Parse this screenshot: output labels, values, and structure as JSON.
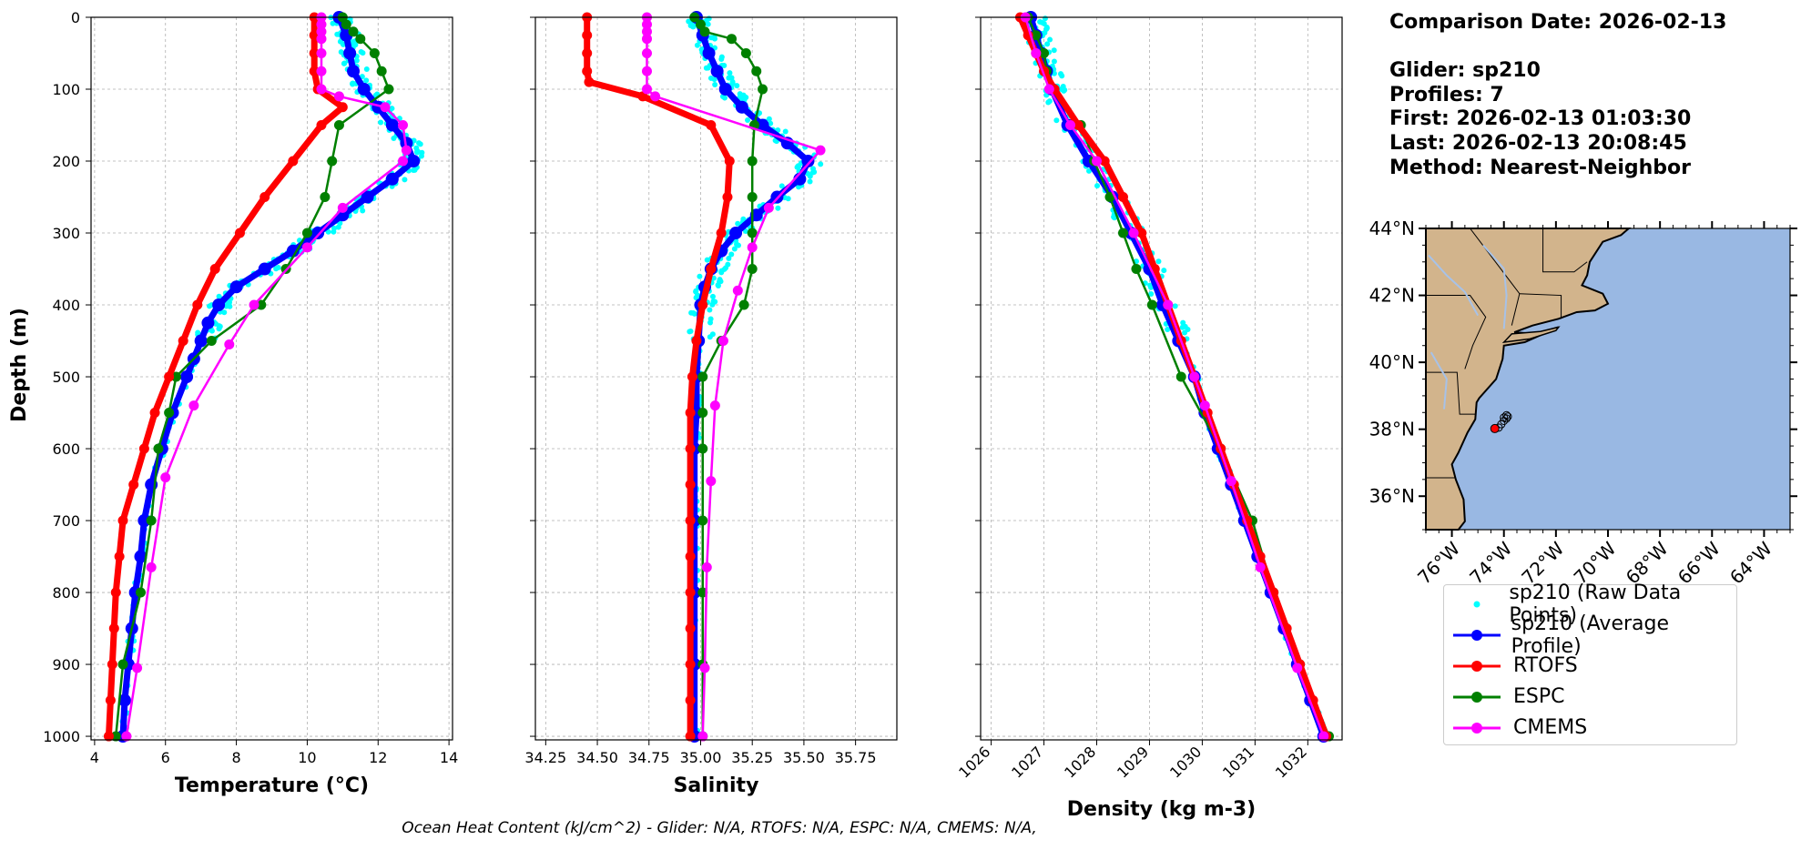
{
  "info": {
    "comparison_date": "Comparison Date: 2026-02-13",
    "glider": "Glider: sp210",
    "profiles": "Profiles: 7",
    "first": "First: 2026-02-13 01:03:30",
    "last": "Last: 2026-02-13 20:08:45",
    "method": "Method: Nearest-Neighbor"
  },
  "footer": "Ocean Heat Content (kJ/cm^2) - Glider: N/A,  RTOFS: N/A,  ESPC: N/A,  CMEMS: N/A,",
  "legend": [
    {
      "label": "sp210 (Raw Data Points)",
      "color": "#00ffff",
      "style": "dot"
    },
    {
      "label": "sp210 (Average Profile)",
      "color": "#0000ff",
      "style": "line"
    },
    {
      "label": "RTOFS",
      "color": "#ff0000",
      "style": "line"
    },
    {
      "label": "ESPC",
      "color": "#008000",
      "style": "line"
    },
    {
      "label": "CMEMS",
      "color": "#ff00ff",
      "style": "line"
    }
  ],
  "colors": {
    "raw": "#00ffff",
    "glider": "#0000ff",
    "rtofs": "#ff0000",
    "espc": "#008000",
    "cmems": "#ff00ff",
    "land": "#d2b48c",
    "ocean": "#99b8e3"
  },
  "chart_data": [
    {
      "type": "line",
      "xlabel": "Temperature (°C)",
      "ylabel": "Depth (m)",
      "xlim": [
        3.9,
        14.1
      ],
      "ylim": [
        1005,
        0
      ],
      "xticks": [
        4,
        6,
        8,
        10,
        12,
        14
      ],
      "yticks": [
        0,
        100,
        200,
        300,
        400,
        500,
        600,
        700,
        800,
        900,
        1000
      ],
      "series": [
        {
          "name": "sp210 (Average Profile)",
          "key": "glider",
          "depth": [
            0,
            25,
            50,
            75,
            100,
            125,
            150,
            175,
            200,
            225,
            250,
            275,
            300,
            325,
            350,
            375,
            400,
            425,
            450,
            475,
            500,
            550,
            600,
            650,
            700,
            750,
            800,
            850,
            900,
            950,
            1000
          ],
          "values": [
            10.9,
            11.1,
            11.2,
            11.3,
            11.6,
            12.0,
            12.4,
            12.8,
            13.0,
            12.4,
            11.7,
            11.0,
            10.3,
            9.6,
            8.8,
            8.0,
            7.5,
            7.2,
            7.0,
            6.8,
            6.6,
            6.2,
            5.9,
            5.6,
            5.4,
            5.3,
            5.15,
            5.05,
            4.95,
            4.85,
            4.8
          ]
        },
        {
          "name": "RTOFS",
          "key": "rtofs",
          "depth": [
            0,
            25,
            50,
            75,
            100,
            125,
            150,
            200,
            250,
            300,
            350,
            400,
            450,
            500,
            550,
            600,
            650,
            700,
            750,
            800,
            850,
            900,
            950,
            1000
          ],
          "values": [
            10.2,
            10.2,
            10.2,
            10.2,
            10.3,
            11.0,
            10.4,
            9.6,
            8.8,
            8.1,
            7.4,
            6.9,
            6.5,
            6.1,
            5.7,
            5.4,
            5.1,
            4.8,
            4.7,
            4.6,
            4.55,
            4.5,
            4.45,
            4.4
          ]
        },
        {
          "name": "ESPC",
          "key": "espc",
          "depth": [
            0,
            10,
            20,
            30,
            50,
            75,
            100,
            150,
            200,
            250,
            300,
            350,
            400,
            450,
            500,
            550,
            600,
            700,
            800,
            900,
            1000
          ],
          "values": [
            11.0,
            11.1,
            11.3,
            11.5,
            11.9,
            12.1,
            12.3,
            10.9,
            10.7,
            10.5,
            10.0,
            9.4,
            8.7,
            7.3,
            6.3,
            6.1,
            5.8,
            5.6,
            5.3,
            4.8,
            4.6
          ]
        },
        {
          "name": "CMEMS",
          "key": "cmems",
          "depth": [
            0,
            10,
            20,
            30,
            50,
            75,
            100,
            110,
            125,
            150,
            185,
            200,
            265,
            320,
            400,
            455,
            540,
            640,
            765,
            905,
            1000
          ],
          "values": [
            10.4,
            10.4,
            10.4,
            10.4,
            10.4,
            10.4,
            10.4,
            10.9,
            12.2,
            12.7,
            12.8,
            12.7,
            11.0,
            10.0,
            8.5,
            7.8,
            6.8,
            6.0,
            5.6,
            5.2,
            4.9
          ]
        }
      ]
    },
    {
      "type": "line",
      "xlabel": "Salinity",
      "ylabel": "",
      "xlim": [
        34.2,
        35.95
      ],
      "ylim": [
        1005,
        0
      ],
      "xticks": [
        34.25,
        34.5,
        34.75,
        35.0,
        35.25,
        35.5,
        35.75
      ],
      "yticks": [
        0,
        100,
        200,
        300,
        400,
        500,
        600,
        700,
        800,
        900,
        1000
      ],
      "series": [
        {
          "name": "sp210 (Average Profile)",
          "key": "glider",
          "depth": [
            0,
            25,
            50,
            75,
            100,
            125,
            150,
            175,
            200,
            225,
            250,
            275,
            300,
            325,
            350,
            375,
            400,
            450,
            500,
            550,
            600,
            700,
            800,
            900,
            1000
          ],
          "values": [
            34.98,
            35.01,
            35.04,
            35.08,
            35.12,
            35.2,
            35.3,
            35.42,
            35.52,
            35.48,
            35.37,
            35.27,
            35.17,
            35.1,
            35.05,
            35.02,
            35.0,
            34.99,
            34.98,
            34.98,
            34.97,
            34.97,
            34.97,
            34.97,
            34.97
          ]
        },
        {
          "name": "RTOFS",
          "key": "rtofs",
          "depth": [
            0,
            25,
            50,
            75,
            90,
            110,
            150,
            200,
            250,
            300,
            350,
            400,
            450,
            500,
            550,
            600,
            650,
            700,
            750,
            800,
            850,
            900,
            950,
            1000
          ],
          "values": [
            34.45,
            34.45,
            34.45,
            34.45,
            34.46,
            34.72,
            35.05,
            35.14,
            35.13,
            35.1,
            35.05,
            35.01,
            34.98,
            34.96,
            34.95,
            34.95,
            34.95,
            34.95,
            34.95,
            34.95,
            34.95,
            34.95,
            34.95,
            34.95
          ]
        },
        {
          "name": "ESPC",
          "key": "espc",
          "depth": [
            0,
            10,
            20,
            30,
            50,
            75,
            100,
            150,
            200,
            250,
            300,
            350,
            400,
            450,
            500,
            550,
            600,
            700,
            800,
            900,
            1000
          ],
          "values": [
            34.97,
            35.0,
            35.02,
            35.15,
            35.22,
            35.27,
            35.3,
            35.26,
            35.25,
            35.25,
            35.25,
            35.25,
            35.21,
            35.1,
            35.01,
            35.01,
            35.01,
            35.01,
            35.01,
            35.01,
            35.01
          ]
        },
        {
          "name": "CMEMS",
          "key": "cmems",
          "depth": [
            0,
            10,
            20,
            30,
            50,
            75,
            100,
            110,
            185,
            265,
            320,
            380,
            450,
            540,
            645,
            765,
            905,
            1000
          ],
          "values": [
            34.74,
            34.74,
            34.74,
            34.74,
            34.74,
            34.74,
            34.74,
            34.78,
            35.58,
            35.33,
            35.25,
            35.18,
            35.11,
            35.07,
            35.05,
            35.03,
            35.02,
            35.01
          ]
        }
      ]
    },
    {
      "type": "line",
      "xlabel": "Density (kg m-3)",
      "ylabel": "",
      "xlim": [
        1025.8,
        1032.65
      ],
      "ylim": [
        1005,
        0
      ],
      "xticks": [
        1026,
        1027,
        1028,
        1029,
        1030,
        1031,
        1032
      ],
      "yticks": [
        0,
        100,
        200,
        300,
        400,
        500,
        600,
        700,
        800,
        900,
        1000
      ],
      "series": [
        {
          "name": "sp210 (Average Profile)",
          "key": "glider",
          "depth": [
            0,
            25,
            50,
            75,
            100,
            150,
            200,
            250,
            300,
            350,
            400,
            450,
            500,
            550,
            600,
            650,
            700,
            750,
            800,
            850,
            900,
            950,
            1000
          ],
          "values": [
            1026.75,
            1026.85,
            1026.95,
            1027.05,
            1027.15,
            1027.45,
            1027.85,
            1028.3,
            1028.65,
            1029.0,
            1029.25,
            1029.55,
            1029.85,
            1030.05,
            1030.3,
            1030.55,
            1030.8,
            1031.05,
            1031.3,
            1031.55,
            1031.8,
            1032.05,
            1032.3
          ]
        },
        {
          "name": "RTOFS",
          "key": "rtofs",
          "depth": [
            0,
            25,
            50,
            75,
            100,
            150,
            200,
            250,
            300,
            350,
            400,
            450,
            500,
            550,
            600,
            650,
            700,
            750,
            800,
            850,
            900,
            950,
            1000
          ],
          "values": [
            1026.55,
            1026.7,
            1026.85,
            1027.0,
            1027.2,
            1027.65,
            1028.15,
            1028.5,
            1028.85,
            1029.1,
            1029.35,
            1029.6,
            1029.85,
            1030.1,
            1030.35,
            1030.6,
            1030.85,
            1031.1,
            1031.35,
            1031.6,
            1031.85,
            1032.1,
            1032.35
          ]
        },
        {
          "name": "ESPC",
          "key": "espc",
          "depth": [
            0,
            25,
            50,
            75,
            100,
            150,
            200,
            250,
            300,
            350,
            400,
            500,
            600,
            700,
            800,
            900,
            1000
          ],
          "values": [
            1026.7,
            1026.85,
            1027.0,
            1027.05,
            1027.15,
            1027.7,
            1027.95,
            1028.25,
            1028.5,
            1028.75,
            1029.05,
            1029.6,
            1030.35,
            1030.95,
            1031.35,
            1031.85,
            1032.4
          ]
        },
        {
          "name": "CMEMS",
          "key": "cmems",
          "depth": [
            0,
            50,
            100,
            150,
            200,
            300,
            400,
            500,
            540,
            645,
            765,
            905,
            1000
          ],
          "values": [
            1026.65,
            1026.85,
            1027.1,
            1027.5,
            1028.0,
            1028.7,
            1029.35,
            1029.85,
            1030.05,
            1030.55,
            1031.1,
            1031.8,
            1032.3
          ]
        }
      ]
    },
    {
      "type": "scatter",
      "xlabel": "",
      "ylabel": "",
      "xlim": [
        -77.0,
        -63.0
      ],
      "ylim": [
        35.0,
        44.0
      ],
      "xticks": [
        -76,
        -74,
        -72,
        -70,
        -68,
        -66,
        -64
      ],
      "xticklabels": [
        "76°W",
        "74°W",
        "72°W",
        "70°W",
        "68°W",
        "66°W",
        "64°W"
      ],
      "yticks": [
        36,
        38,
        40,
        42,
        44
      ],
      "yticklabels": [
        "36°N",
        "38°N",
        "40°N",
        "42°N",
        "44°N"
      ],
      "series": [
        {
          "name": "sp210 track",
          "key": "track",
          "x": [
            -74.2,
            -74.1,
            -74.0,
            -73.9,
            -73.85,
            -73.9,
            -74.0
          ],
          "y": [
            38.05,
            38.15,
            38.25,
            38.32,
            38.38,
            38.42,
            38.35
          ]
        },
        {
          "name": "Model location",
          "key": "rtofs",
          "x": [
            -74.35
          ],
          "y": [
            38.02
          ]
        }
      ]
    }
  ]
}
